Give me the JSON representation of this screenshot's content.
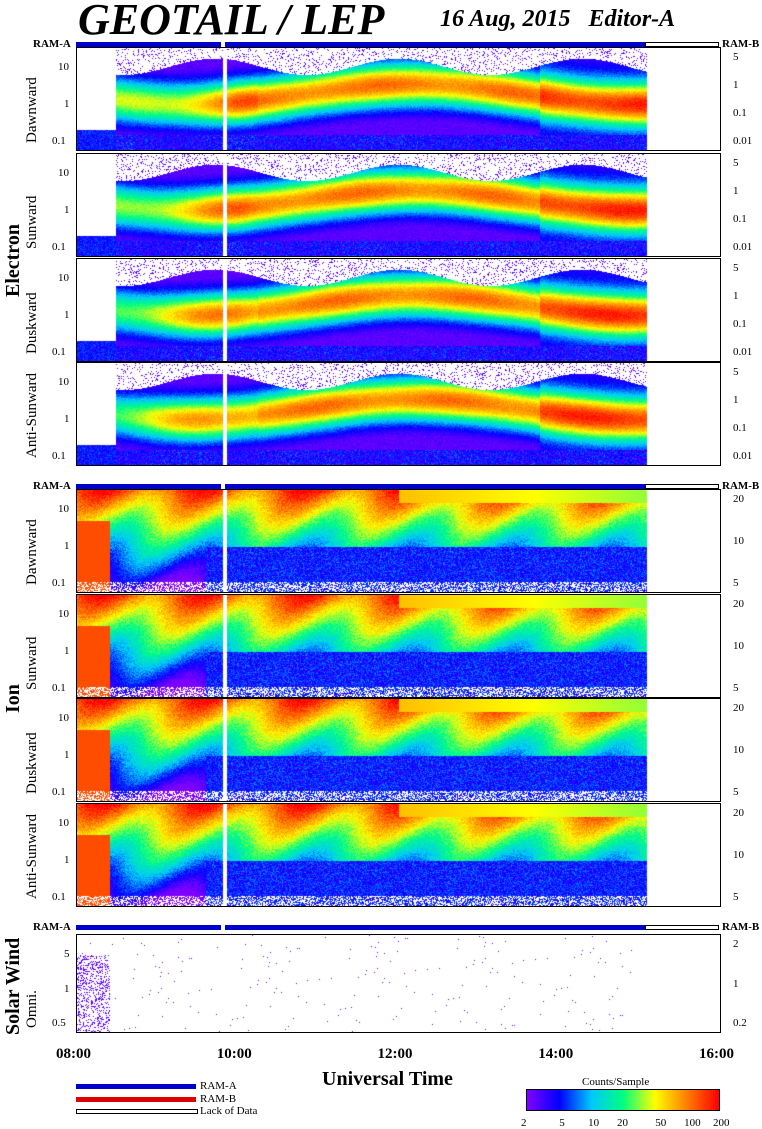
{
  "header": {
    "title": "GEOTAIL / LEP",
    "date": "16 Aug, 2015",
    "editor": "Editor-A"
  },
  "ram_labels": {
    "left": "RAM-A",
    "right": "RAM-B"
  },
  "groups": [
    {
      "name": "Electron",
      "panels": [
        {
          "label": "Dawnward",
          "left_ticks": [
            "10",
            "1",
            "0.1"
          ],
          "right_ticks": [
            "5",
            "1",
            "0.1",
            "0.01"
          ]
        },
        {
          "label": "Sunward",
          "left_ticks": [
            "10",
            "1",
            "0.1"
          ],
          "right_ticks": [
            "5",
            "1",
            "0.1",
            "0.01"
          ]
        },
        {
          "label": "Duskward",
          "left_ticks": [
            "10",
            "1",
            "0.1"
          ],
          "right_ticks": [
            "5",
            "1",
            "0.1",
            "0.01"
          ]
        },
        {
          "label": "Anti-Sunward",
          "left_ticks": [
            "10",
            "1",
            "0.1"
          ],
          "right_ticks": [
            "5",
            "1",
            "0.1",
            "0.01"
          ]
        }
      ]
    },
    {
      "name": "Ion",
      "panels": [
        {
          "label": "Dawnward",
          "left_ticks": [
            "10",
            "1",
            "0.1"
          ],
          "right_ticks": [
            "20",
            "10",
            "5"
          ]
        },
        {
          "label": "Sunward",
          "left_ticks": [
            "10",
            "1",
            "0.1"
          ],
          "right_ticks": [
            "20",
            "10",
            "5"
          ]
        },
        {
          "label": "Duskward",
          "left_ticks": [
            "10",
            "1",
            "0.1"
          ],
          "right_ticks": [
            "20",
            "10",
            "5"
          ]
        },
        {
          "label": "Anti-Sunward",
          "left_ticks": [
            "10",
            "1",
            "0.1"
          ],
          "right_ticks": [
            "20",
            "10",
            "5"
          ]
        }
      ]
    },
    {
      "name": "Solar Wind",
      "panels": [
        {
          "label": "Omni.",
          "left_ticks": [
            "5",
            "1",
            "0.5"
          ],
          "right_ticks": [
            "2",
            "1",
            "0.2"
          ]
        }
      ]
    }
  ],
  "chart_data": {
    "type": "heatmap",
    "x_axis": {
      "label": "Universal Time",
      "ticks": [
        "08:00",
        "10:00",
        "12:00",
        "14:00",
        "16:00"
      ],
      "range": [
        "08:00",
        "16:00"
      ]
    },
    "data_coverage": {
      "start": "08:00",
      "end": "15:05"
    },
    "data_gap": "09:50",
    "colorbar": {
      "title": "Counts/Sample",
      "ticks": [
        "2",
        "5",
        "10",
        "20",
        "50",
        "100",
        "200"
      ],
      "range": [
        2,
        200
      ],
      "scale": "log",
      "colors": [
        "#7f00ff",
        "#0000ff",
        "#00c8ff",
        "#00ff80",
        "#ffff00",
        "#ff8000",
        "#ff0000"
      ]
    },
    "legend": [
      {
        "name": "RAM-A",
        "color": "#0000cc"
      },
      {
        "name": "RAM-B",
        "color": "#dd0000"
      },
      {
        "name": "Lack of Data",
        "color": "#ffffff"
      }
    ]
  }
}
